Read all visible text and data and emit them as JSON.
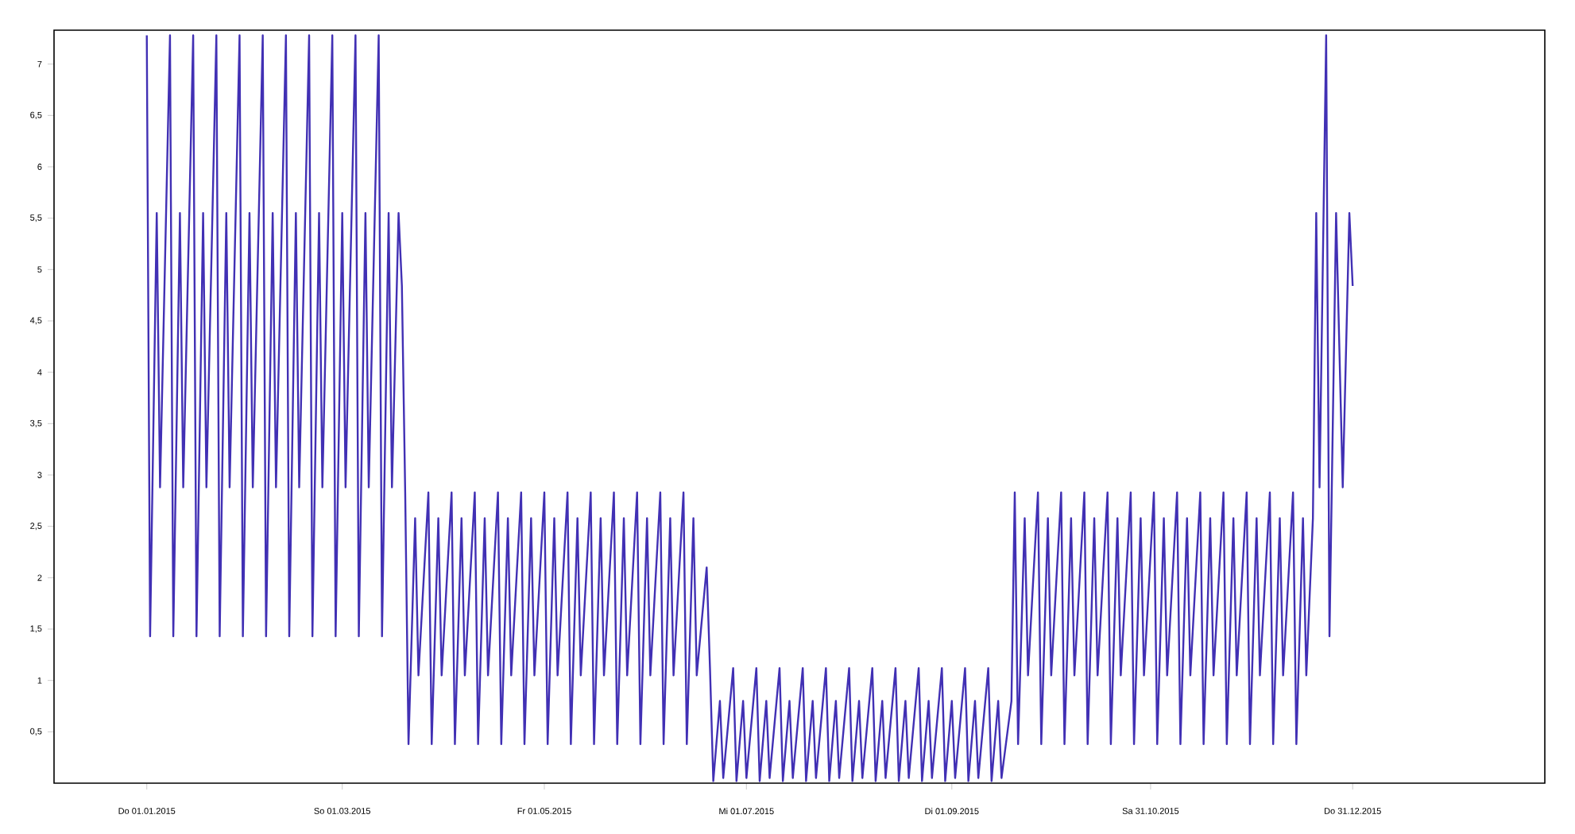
{
  "chart_data": {
    "type": "line",
    "color": "#4130b4",
    "x": [
      "2015-01-01",
      "2015-01-02",
      "2015-01-04",
      "2015-01-05",
      "2015-01-08",
      "2015-01-09",
      "2015-01-11",
      "2015-01-12",
      "2015-01-15",
      "2015-01-16",
      "2015-01-18",
      "2015-01-19",
      "2015-01-22",
      "2015-01-23",
      "2015-01-25",
      "2015-01-26",
      "2015-01-29",
      "2015-01-30",
      "2015-02-01",
      "2015-02-02",
      "2015-02-05",
      "2015-02-06",
      "2015-02-08",
      "2015-02-09",
      "2015-02-12",
      "2015-02-13",
      "2015-02-15",
      "2015-02-16",
      "2015-02-19",
      "2015-02-20",
      "2015-02-22",
      "2015-02-23",
      "2015-02-26",
      "2015-02-27",
      "2015-03-01",
      "2015-03-02",
      "2015-03-05",
      "2015-03-06",
      "2015-03-08",
      "2015-03-09",
      "2015-03-12",
      "2015-03-13",
      "2015-03-15",
      "2015-03-16",
      "2015-03-18",
      "2015-03-19",
      "2015-03-20",
      "2015-03-21",
      "2015-03-23",
      "2015-03-24",
      "2015-03-27",
      "2015-03-28",
      "2015-03-30",
      "2015-03-31",
      "2015-04-03",
      "2015-04-04",
      "2015-04-06",
      "2015-04-07",
      "2015-04-10",
      "2015-04-11",
      "2015-04-13",
      "2015-04-14",
      "2015-04-17",
      "2015-04-18",
      "2015-04-20",
      "2015-04-21",
      "2015-04-24",
      "2015-04-25",
      "2015-04-27",
      "2015-04-28",
      "2015-05-01",
      "2015-05-02",
      "2015-05-04",
      "2015-05-05",
      "2015-05-08",
      "2015-05-09",
      "2015-05-11",
      "2015-05-12",
      "2015-05-15",
      "2015-05-16",
      "2015-05-18",
      "2015-05-19",
      "2015-05-22",
      "2015-05-23",
      "2015-05-25",
      "2015-05-26",
      "2015-05-29",
      "2015-05-30",
      "2015-06-01",
      "2015-06-02",
      "2015-06-05",
      "2015-06-06",
      "2015-06-08",
      "2015-06-09",
      "2015-06-12",
      "2015-06-13",
      "2015-06-15",
      "2015-06-16",
      "2015-06-19",
      "2015-06-20",
      "2015-06-21",
      "2015-06-23",
      "2015-06-24",
      "2015-06-27",
      "2015-06-28",
      "2015-06-30",
      "2015-07-01",
      "2015-07-04",
      "2015-07-05",
      "2015-07-07",
      "2015-07-08",
      "2015-07-11",
      "2015-07-12",
      "2015-07-14",
      "2015-07-15",
      "2015-07-18",
      "2015-07-19",
      "2015-07-21",
      "2015-07-22",
      "2015-07-25",
      "2015-07-26",
      "2015-07-28",
      "2015-07-29",
      "2015-08-01",
      "2015-08-02",
      "2015-08-04",
      "2015-08-05",
      "2015-08-08",
      "2015-08-09",
      "2015-08-11",
      "2015-08-12",
      "2015-08-15",
      "2015-08-16",
      "2015-08-18",
      "2015-08-19",
      "2015-08-22",
      "2015-08-23",
      "2015-08-25",
      "2015-08-26",
      "2015-08-29",
      "2015-08-30",
      "2015-09-01",
      "2015-09-02",
      "2015-09-05",
      "2015-09-06",
      "2015-09-08",
      "2015-09-09",
      "2015-09-12",
      "2015-09-13",
      "2015-09-15",
      "2015-09-16",
      "2015-09-19",
      "2015-09-20",
      "2015-09-21",
      "2015-09-23",
      "2015-09-24",
      "2015-09-27",
      "2015-09-28",
      "2015-09-30",
      "2015-10-01",
      "2015-10-04",
      "2015-10-05",
      "2015-10-07",
      "2015-10-08",
      "2015-10-11",
      "2015-10-12",
      "2015-10-14",
      "2015-10-15",
      "2015-10-18",
      "2015-10-19",
      "2015-10-21",
      "2015-10-22",
      "2015-10-25",
      "2015-10-26",
      "2015-10-28",
      "2015-10-29",
      "2015-11-01",
      "2015-11-02",
      "2015-11-04",
      "2015-11-05",
      "2015-11-08",
      "2015-11-09",
      "2015-11-11",
      "2015-11-12",
      "2015-11-15",
      "2015-11-16",
      "2015-11-18",
      "2015-11-19",
      "2015-11-22",
      "2015-11-23",
      "2015-11-25",
      "2015-11-26",
      "2015-11-29",
      "2015-11-30",
      "2015-12-02",
      "2015-12-03",
      "2015-12-06",
      "2015-12-07",
      "2015-12-09",
      "2015-12-10",
      "2015-12-13",
      "2015-12-14",
      "2015-12-16",
      "2015-12-17",
      "2015-12-19",
      "2015-12-20",
      "2015-12-21",
      "2015-12-23",
      "2015-12-24",
      "2015-12-26",
      "2015-12-28",
      "2015-12-30",
      "2015-12-31"
    ],
    "values": [
      7.28,
      1.43,
      5.55,
      2.88,
      7.28,
      1.43,
      5.55,
      2.88,
      7.28,
      1.43,
      5.55,
      2.88,
      7.28,
      1.43,
      5.55,
      2.88,
      7.28,
      1.43,
      5.55,
      2.88,
      7.28,
      1.43,
      5.55,
      2.88,
      7.28,
      1.43,
      5.55,
      2.88,
      7.28,
      1.43,
      5.55,
      2.88,
      7.28,
      1.43,
      5.55,
      2.88,
      7.28,
      1.43,
      5.55,
      2.88,
      7.28,
      1.43,
      5.55,
      2.88,
      5.55,
      4.84,
      2.83,
      0.38,
      2.58,
      1.05,
      2.83,
      0.38,
      2.58,
      1.05,
      2.83,
      0.38,
      2.58,
      1.05,
      2.83,
      0.38,
      2.58,
      1.05,
      2.83,
      0.38,
      2.58,
      1.05,
      2.83,
      0.38,
      2.58,
      1.05,
      2.83,
      0.38,
      2.58,
      1.05,
      2.83,
      0.38,
      2.58,
      1.05,
      2.83,
      0.38,
      2.58,
      1.05,
      2.83,
      0.38,
      2.58,
      1.05,
      2.83,
      0.38,
      2.58,
      1.05,
      2.83,
      0.38,
      2.58,
      1.05,
      2.83,
      0.38,
      2.58,
      1.05,
      2.1,
      1.12,
      0.02,
      0.8,
      0.05,
      1.12,
      0.02,
      0.8,
      0.05,
      1.12,
      0.02,
      0.8,
      0.05,
      1.12,
      0.02,
      0.8,
      0.05,
      1.12,
      0.02,
      0.8,
      0.05,
      1.12,
      0.02,
      0.8,
      0.05,
      1.12,
      0.02,
      0.8,
      0.05,
      1.12,
      0.02,
      0.8,
      0.05,
      1.12,
      0.02,
      0.8,
      0.05,
      1.12,
      0.02,
      0.8,
      0.05,
      1.12,
      0.02,
      0.8,
      0.05,
      1.12,
      0.02,
      0.8,
      0.05,
      1.12,
      0.02,
      0.8,
      0.05,
      0.8,
      2.83,
      0.38,
      2.58,
      1.05,
      2.83,
      0.38,
      2.58,
      1.05,
      2.83,
      0.38,
      2.58,
      1.05,
      2.83,
      0.38,
      2.58,
      1.05,
      2.83,
      0.38,
      2.58,
      1.05,
      2.83,
      0.38,
      2.58,
      1.05,
      2.83,
      0.38,
      2.58,
      1.05,
      2.83,
      0.38,
      2.58,
      1.05,
      2.83,
      0.38,
      2.58,
      1.05,
      2.83,
      0.38,
      2.58,
      1.05,
      2.83,
      0.38,
      2.58,
      1.05,
      2.83,
      0.38,
      2.58,
      1.05,
      2.83,
      0.38,
      2.58,
      1.05,
      2.58,
      5.55,
      2.88,
      7.28,
      1.43,
      5.55,
      2.88,
      5.55,
      4.84
    ],
    "xlim": [
      "2014-12-04",
      "2016-02-27"
    ],
    "xticks": [
      {
        "value": "2015-01-01",
        "label": "Do 01.01.2015"
      },
      {
        "value": "2015-03-01",
        "label": "So 01.03.2015"
      },
      {
        "value": "2015-05-01",
        "label": "Fr 01.05.2015"
      },
      {
        "value": "2015-07-01",
        "label": "Mi 01.07.2015"
      },
      {
        "value": "2015-09-01",
        "label": "Di 01.09.2015"
      },
      {
        "value": "2015-10-31",
        "label": "Sa 31.10.2015"
      },
      {
        "value": "2015-12-31",
        "label": "Do 31.12.2015"
      }
    ],
    "ylim": [
      0,
      7.33
    ],
    "yticks": [
      {
        "value": 0.5,
        "label": "0,5"
      },
      1,
      {
        "value": 1.5,
        "label": "1,5"
      },
      2,
      {
        "value": 2.5,
        "label": "2,5"
      },
      3,
      {
        "value": 3.5,
        "label": "3,5"
      },
      4,
      {
        "value": 4.5,
        "label": "4,5"
      },
      5,
      {
        "value": 5.5,
        "label": "5,5"
      },
      6,
      {
        "value": 6.5,
        "label": "6,5"
      },
      7
    ],
    "line_style": "solid"
  }
}
